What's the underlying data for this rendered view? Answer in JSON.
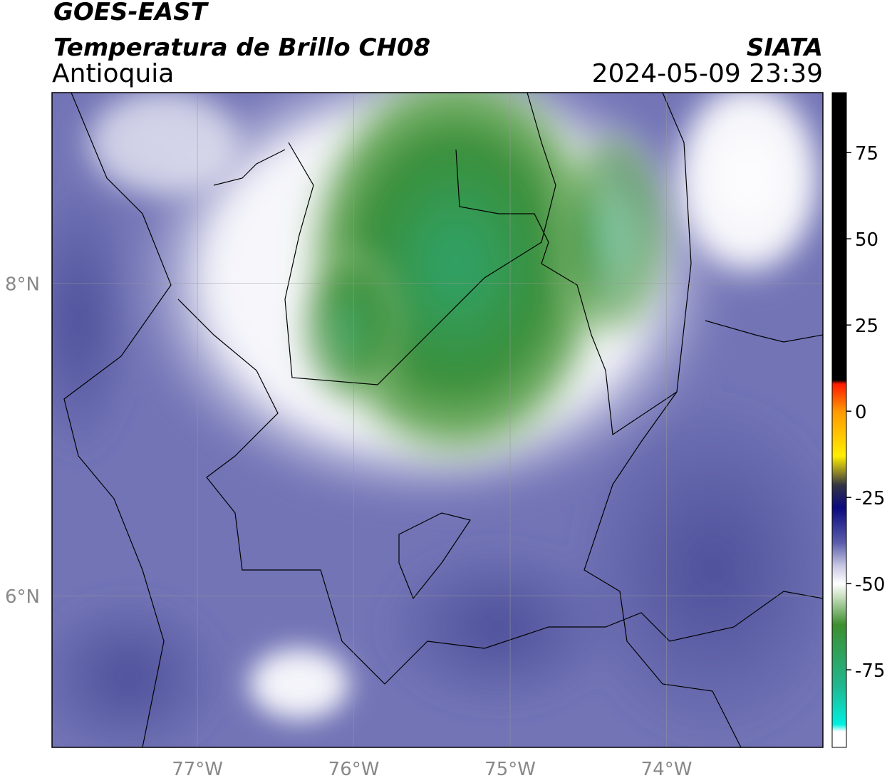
{
  "header": {
    "title": "GOES-EAST",
    "subtitle": "Temperatura de Brillo CH08",
    "region": "Antioquia",
    "source": "SIATA",
    "timestamp": "2024-05-09 23:39"
  },
  "map": {
    "lonlim": [
      -77.93,
      -73.0
    ],
    "latlim": [
      5.03,
      9.22
    ],
    "lon_ticks": [
      {
        "value": -77,
        "label": "77°W"
      },
      {
        "value": -76,
        "label": "76°W"
      },
      {
        "value": -75,
        "label": "75°W"
      },
      {
        "value": -74,
        "label": "74°W"
      }
    ],
    "lat_ticks": [
      {
        "value": 8,
        "label": "8°N"
      },
      {
        "value": 6,
        "label": "6°N"
      }
    ]
  },
  "colorbar": {
    "lim": [
      -97.5,
      92.4
    ],
    "ticks": [
      75,
      50,
      25,
      0,
      -25,
      -50,
      -75
    ]
  }
}
